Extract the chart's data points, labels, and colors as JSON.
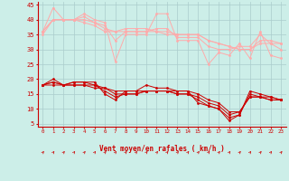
{
  "x": [
    0,
    1,
    2,
    3,
    4,
    5,
    6,
    7,
    8,
    9,
    10,
    11,
    12,
    13,
    14,
    15,
    16,
    17,
    18,
    19,
    20,
    21,
    22,
    23
  ],
  "lines_rafales": [
    [
      36,
      44,
      40,
      40,
      42,
      40,
      39,
      26,
      35,
      35,
      35,
      42,
      42,
      33,
      33,
      33,
      25,
      29,
      28,
      32,
      27,
      36,
      28,
      27
    ],
    [
      36,
      40,
      40,
      40,
      41,
      39,
      38,
      33,
      36,
      36,
      36,
      37,
      37,
      34,
      34,
      34,
      31,
      30,
      30,
      31,
      31,
      35,
      32,
      30
    ],
    [
      36,
      40,
      40,
      40,
      40,
      39,
      37,
      36,
      37,
      37,
      37,
      36,
      36,
      35,
      35,
      35,
      33,
      32,
      31,
      30,
      30,
      33,
      33,
      32
    ],
    [
      35,
      40,
      40,
      40,
      39,
      38,
      36,
      36,
      36,
      36,
      36,
      36,
      35,
      35,
      35,
      35,
      33,
      32,
      31,
      30,
      30,
      32,
      32,
      32
    ]
  ],
  "lines_vent": [
    [
      18,
      20,
      18,
      19,
      19,
      19,
      15,
      13,
      16,
      16,
      18,
      17,
      17,
      16,
      16,
      12,
      11,
      10,
      6,
      8,
      16,
      15,
      14,
      13
    ],
    [
      18,
      19,
      18,
      19,
      19,
      18,
      16,
      14,
      15,
      15,
      16,
      16,
      16,
      15,
      15,
      13,
      11,
      10,
      7,
      8,
      15,
      14,
      14,
      13
    ],
    [
      18,
      19,
      18,
      18,
      18,
      18,
      17,
      15,
      15,
      15,
      16,
      16,
      16,
      15,
      15,
      14,
      12,
      11,
      8,
      9,
      14,
      14,
      13,
      13
    ],
    [
      18,
      18,
      18,
      18,
      18,
      17,
      17,
      16,
      16,
      16,
      16,
      16,
      16,
      16,
      16,
      15,
      13,
      12,
      9,
      9,
      14,
      14,
      13,
      13
    ]
  ],
  "color_rafales": "#ffaaaa",
  "color_vent": "#cc0000",
  "bg_color": "#cceee8",
  "grid_color": "#aacccc",
  "axis_color": "#cc0000",
  "xlabel": "Vent moyen/en rafales ( km/h )",
  "ylim": [
    4,
    46
  ],
  "yticks": [
    5,
    10,
    15,
    20,
    25,
    30,
    35,
    40,
    45
  ],
  "xlim": [
    -0.5,
    23.5
  ],
  "marker_size": 2.0
}
